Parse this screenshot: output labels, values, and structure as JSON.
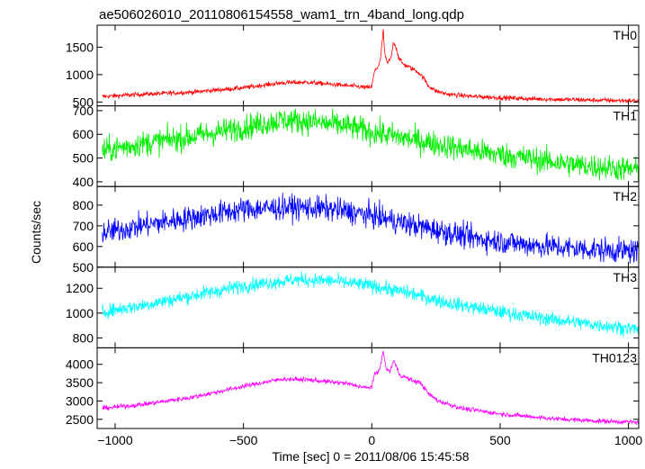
{
  "title": "ae506026010_20110806154558_wam1_trn_4band_long.qdp",
  "ylabel": "Counts/sec",
  "xlabel": "Time [sec] 0 = 2011/08/06 15:45:58",
  "chart_data": {
    "type": "line",
    "xlim": [
      -1070,
      1040
    ],
    "xticks": [
      -1000,
      -500,
      0,
      500,
      1000
    ],
    "xtick_labels": [
      "−1000",
      "−500",
      "0",
      "500",
      "1000"
    ],
    "panels": [
      {
        "name": "TH0",
        "color": "#ff0000",
        "ylim": [
          430,
          1900
        ],
        "yticks": [
          500,
          1000,
          1500
        ],
        "noise": 30,
        "points": [
          [
            -1050,
            600
          ],
          [
            -900,
            640
          ],
          [
            -700,
            680
          ],
          [
            -500,
            760
          ],
          [
            -350,
            850
          ],
          [
            -250,
            860
          ],
          [
            -150,
            820
          ],
          [
            -50,
            780
          ],
          [
            -15,
            760
          ],
          [
            0,
            780
          ],
          [
            10,
            1050
          ],
          [
            25,
            1150
          ],
          [
            35,
            1300
          ],
          [
            40,
            1600
          ],
          [
            45,
            1800
          ],
          [
            50,
            1400
          ],
          [
            60,
            1200
          ],
          [
            75,
            1300
          ],
          [
            85,
            1600
          ],
          [
            95,
            1500
          ],
          [
            105,
            1300
          ],
          [
            120,
            1200
          ],
          [
            140,
            1150
          ],
          [
            160,
            1100
          ],
          [
            180,
            1050
          ],
          [
            200,
            950
          ],
          [
            220,
            800
          ],
          [
            250,
            700
          ],
          [
            300,
            640
          ],
          [
            400,
            600
          ],
          [
            600,
            560
          ],
          [
            800,
            540
          ],
          [
            1040,
            520
          ]
        ]
      },
      {
        "name": "TH1",
        "color": "#00ee00",
        "ylim": [
          380,
          720
        ],
        "yticks": [
          400,
          500,
          600,
          700
        ],
        "noise": 38,
        "points": [
          [
            -1050,
            530
          ],
          [
            -900,
            560
          ],
          [
            -700,
            590
          ],
          [
            -500,
            630
          ],
          [
            -350,
            660
          ],
          [
            -250,
            655
          ],
          [
            -100,
            635
          ],
          [
            0,
            610
          ],
          [
            100,
            590
          ],
          [
            250,
            560
          ],
          [
            400,
            530
          ],
          [
            600,
            500
          ],
          [
            800,
            470
          ],
          [
            1040,
            450
          ]
        ]
      },
      {
        "name": "TH2",
        "color": "#0000ff",
        "ylim": [
          500,
          890
        ],
        "yticks": [
          500,
          600,
          700,
          800
        ],
        "noise": 42,
        "points": [
          [
            -1050,
            665
          ],
          [
            -900,
            700
          ],
          [
            -700,
            740
          ],
          [
            -500,
            780
          ],
          [
            -300,
            790
          ],
          [
            -150,
            780
          ],
          [
            0,
            750
          ],
          [
            100,
            720
          ],
          [
            250,
            680
          ],
          [
            400,
            640
          ],
          [
            600,
            610
          ],
          [
            800,
            590
          ],
          [
            1040,
            575
          ]
        ]
      },
      {
        "name": "TH3",
        "color": "#00ffff",
        "ylim": [
          720,
          1370
        ],
        "yticks": [
          800,
          1000,
          1200
        ],
        "noise": 40,
        "points": [
          [
            -1050,
            1010
          ],
          [
            -900,
            1060
          ],
          [
            -700,
            1140
          ],
          [
            -500,
            1220
          ],
          [
            -300,
            1270
          ],
          [
            -150,
            1260
          ],
          [
            0,
            1220
          ],
          [
            150,
            1160
          ],
          [
            300,
            1080
          ],
          [
            500,
            1010
          ],
          [
            700,
            950
          ],
          [
            900,
            900
          ],
          [
            1040,
            870
          ]
        ]
      },
      {
        "name": "TH0123",
        "color": "#ff00ff",
        "ylim": [
          2250,
          4450
        ],
        "yticks": [
          2500,
          3000,
          3500,
          4000
        ],
        "noise": 45,
        "points": [
          [
            -1050,
            2800
          ],
          [
            -900,
            2900
          ],
          [
            -700,
            3100
          ],
          [
            -500,
            3400
          ],
          [
            -350,
            3600
          ],
          [
            -250,
            3580
          ],
          [
            -100,
            3480
          ],
          [
            -15,
            3350
          ],
          [
            0,
            3400
          ],
          [
            10,
            3700
          ],
          [
            25,
            3800
          ],
          [
            35,
            4000
          ],
          [
            40,
            4200
          ],
          [
            45,
            4350
          ],
          [
            55,
            3900
          ],
          [
            70,
            3800
          ],
          [
            85,
            4100
          ],
          [
            95,
            3950
          ],
          [
            110,
            3700
          ],
          [
            130,
            3650
          ],
          [
            160,
            3550
          ],
          [
            190,
            3500
          ],
          [
            220,
            3200
          ],
          [
            260,
            3000
          ],
          [
            350,
            2800
          ],
          [
            500,
            2650
          ],
          [
            700,
            2520
          ],
          [
            900,
            2450
          ],
          [
            1040,
            2420
          ]
        ]
      }
    ]
  }
}
